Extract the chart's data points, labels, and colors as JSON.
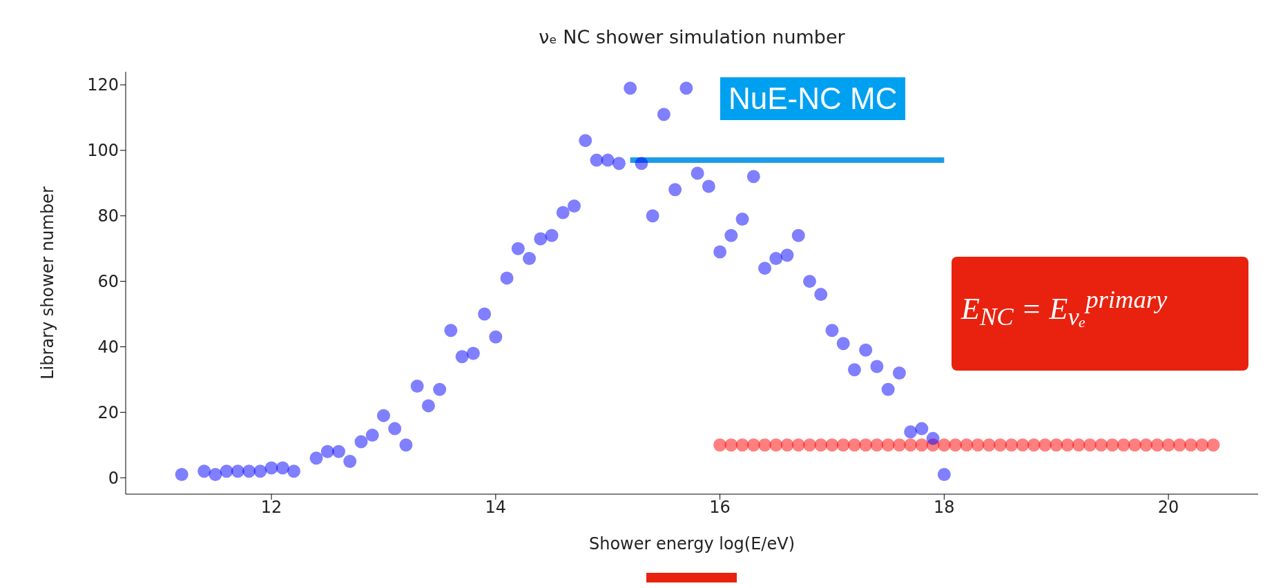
{
  "chart_data": {
    "type": "scatter",
    "title": "νₑ NC shower simulation number",
    "xlabel": "Shower energy log(E/eV)",
    "ylabel": "Library shower number",
    "annotations": [
      "NuE-NC MC",
      "E$_{NC}$ = E$_{νₑ}$$^{primary}$"
    ],
    "series": [
      {
        "color": "#ff0000",
        "x": [
          16.0,
          16.1,
          16.2,
          16.3,
          16.4,
          16.5,
          16.6,
          16.7,
          16.8,
          16.9,
          17.0,
          17.1,
          17.2,
          17.3,
          17.4,
          17.5,
          17.6,
          17.7,
          17.8,
          17.9,
          18.0,
          18.1,
          18.2,
          18.3,
          18.4,
          18.5,
          18.6,
          18.7,
          18.8,
          18.9,
          19.0,
          19.1,
          19.2,
          19.3,
          19.4,
          19.5,
          19.6,
          19.7,
          19.8,
          19.9,
          20.0,
          20.1,
          20.2,
          20.3,
          20.4
        ],
        "values": [
          10,
          10,
          10,
          10,
          10,
          10,
          10,
          10,
          10,
          10,
          10,
          10,
          10,
          10,
          10,
          10,
          10,
          10,
          10,
          10,
          10,
          10,
          10,
          10,
          10,
          10,
          10,
          10,
          10,
          10,
          10,
          10,
          10,
          10,
          10,
          10,
          10,
          10,
          10,
          10,
          10,
          10,
          10,
          10,
          10
        ]
      },
      {
        "type": "line",
        "color": "#1e9be8",
        "x": [
          15.2,
          18.0
        ],
        "values": [
          97,
          97
        ],
        "line_style": "solid",
        "marker": "none"
      },
      {
        "color": "#0000ff",
        "x": [
          11.2,
          11.4,
          11.5,
          11.6,
          11.7,
          11.8,
          11.9,
          12.0,
          12.1,
          12.2,
          12.4,
          12.5,
          12.6,
          12.7,
          12.8,
          12.9,
          13.0,
          13.1,
          13.2,
          13.3,
          13.4,
          13.5,
          13.6,
          13.7,
          13.8,
          13.9,
          14.0,
          14.1,
          14.2,
          14.3,
          14.4,
          14.5,
          14.6,
          14.7,
          14.8,
          14.9,
          15.0,
          15.1,
          15.2,
          15.3,
          15.4,
          15.5,
          15.6,
          15.7,
          15.8,
          15.9,
          16.0,
          16.1,
          16.2,
          16.3,
          16.4,
          16.5,
          16.6,
          16.7,
          16.8,
          16.9,
          17.0,
          17.1,
          17.2,
          17.3,
          17.4,
          17.5,
          17.6,
          17.7,
          17.8,
          17.9,
          18.0
        ],
        "values": [
          1,
          2,
          1,
          2,
          2,
          2,
          2,
          3,
          3,
          2,
          6,
          8,
          8,
          5,
          11,
          13,
          19,
          15,
          10,
          28,
          22,
          27,
          45,
          37,
          38,
          50,
          43,
          61,
          70,
          67,
          73,
          74,
          81,
          83,
          103,
          97,
          97,
          96,
          119,
          96,
          80,
          111,
          88,
          119,
          93,
          89,
          69,
          74,
          79,
          92,
          64,
          67,
          68,
          74,
          60,
          56,
          45,
          41,
          33,
          39,
          34,
          27,
          32,
          14,
          15,
          12,
          1
        ]
      }
    ],
    "xlim": [
      10.7,
      20.8
    ],
    "xticks": [
      12,
      14,
      16,
      18,
      20
    ],
    "ylim": [
      -5,
      124
    ],
    "yticks": [
      0,
      20,
      40,
      60,
      80,
      100,
      120
    ],
    "marker": "circle"
  }
}
